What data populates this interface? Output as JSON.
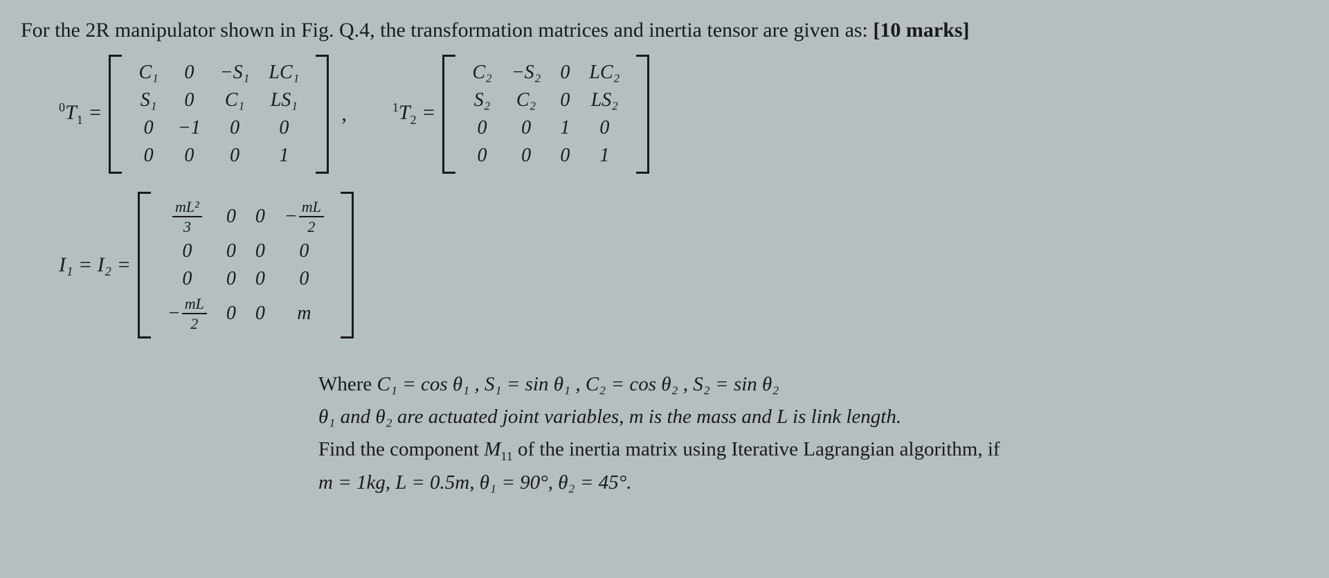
{
  "colors": {
    "background": "#b5bfc2",
    "text": "#1a1a1a"
  },
  "intro": {
    "prefix": "For the 2R manipulator shown in Fig. Q.4, the transformation matrices and inertia tensor are given as: ",
    "marks": "[10 marks]"
  },
  "matrixT1": {
    "label_pre_sup": "0",
    "label_T": "T",
    "label_sub": "1",
    "eq": " = ",
    "rows": 4,
    "cols": 4,
    "cells": [
      "C₁",
      "0",
      "−S₁",
      "LC₁",
      "S₁",
      "0",
      "C₁",
      "LS₁",
      "0",
      "−1",
      "0",
      "0",
      "0",
      "0",
      "0",
      "1"
    ]
  },
  "matrixT2": {
    "label_pre_sup": "1",
    "label_T": "T",
    "label_sub": "2",
    "eq": " = ",
    "rows": 4,
    "cols": 4,
    "cells": [
      "C₂",
      "−S₂",
      "0",
      "LC₂",
      "S₂",
      "C₂",
      "0",
      "LS₂",
      "0",
      "0",
      "1",
      "0",
      "0",
      "0",
      "0",
      "1"
    ]
  },
  "between_comma": ",",
  "matrixI": {
    "label": "I₁ = I₂ = ",
    "rows": 4,
    "cols": 4,
    "cells": [
      {
        "type": "frac",
        "num": "mL²",
        "den": "3"
      },
      "0",
      "0",
      {
        "type": "negfrac",
        "num": "mL",
        "den": "2"
      },
      "0",
      "0",
      "0",
      "0",
      "0",
      "0",
      "0",
      "0",
      {
        "type": "negfrac",
        "num": "mL",
        "den": "2"
      },
      "0",
      "0",
      "m"
    ]
  },
  "where": {
    "line1_pre": "Where ",
    "line1": "C₁ = cos θ₁  , S₁ = sin θ₁ ,  C₂ = cos θ₂  , S₂ = sin θ₂",
    "line2": "θ₁ and θ₂ are actuated joint variables, m  is the mass and L is link length.",
    "line3_a": "Find the component ",
    "line3_M": "M",
    "line3_Msub": "11",
    "line3_b": " of the inertia matrix using Iterative Lagrangian algorithm, if",
    "line4": "m = 1kg, L = 0.5m, θ₁ = 90°, θ₂ = 45°."
  }
}
